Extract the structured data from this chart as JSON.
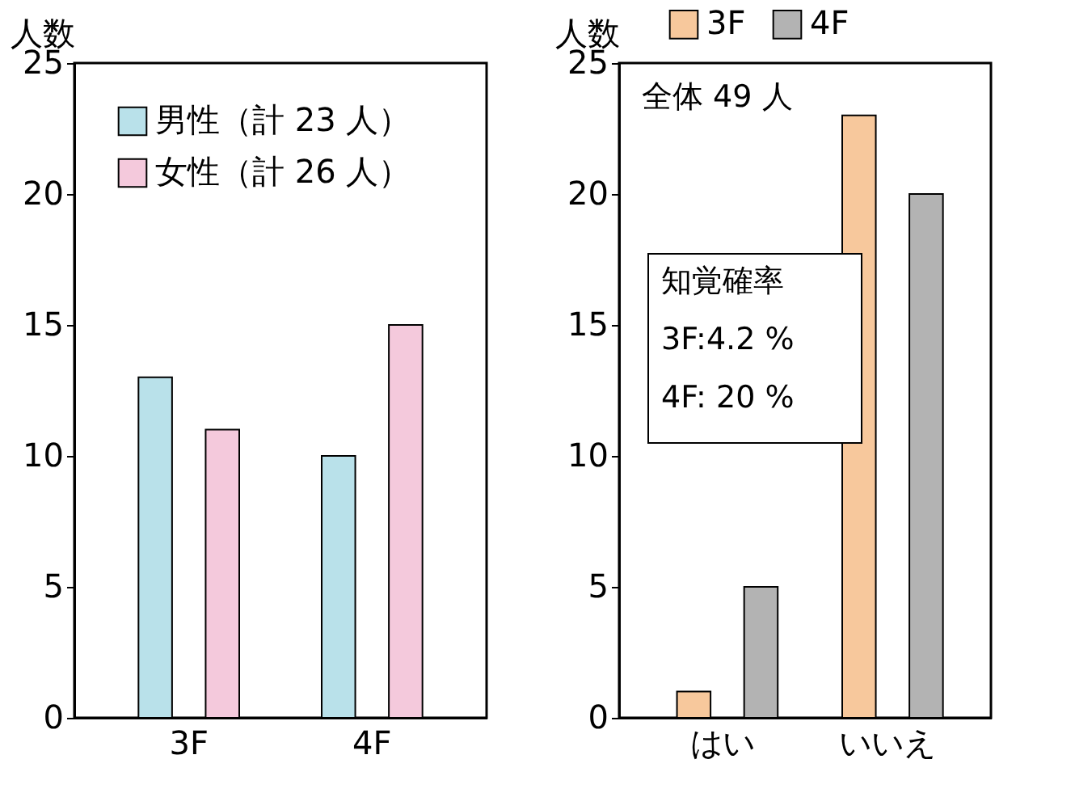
{
  "chart_data": [
    {
      "type": "bar",
      "ylabel": "人数",
      "categories": [
        "3F",
        "4F"
      ],
      "ylim": [
        0,
        25
      ],
      "yticks": [
        0,
        5,
        10,
        15,
        20,
        25
      ],
      "legend": "top left",
      "series": [
        {
          "name": "男性（計 23 人）",
          "color": "#b9e1ea",
          "values": [
            13,
            10
          ]
        },
        {
          "name": "女性（計 26 人）",
          "color": "#f4c9dc",
          "values": [
            11,
            15
          ]
        }
      ]
    },
    {
      "type": "bar",
      "ylabel": "人数",
      "categories": [
        "はい",
        "いいえ"
      ],
      "ylim": [
        0,
        25
      ],
      "yticks": [
        0,
        5,
        10,
        15,
        20,
        25
      ],
      "legend": "top",
      "annotations": [
        "全体 49 人",
        "知覚確率\n3F:4.2 %\n4F: 20 %"
      ],
      "series": [
        {
          "name": "3F",
          "color": "#f7c89c",
          "values": [
            1,
            23
          ]
        },
        {
          "name": "4F",
          "color": "#b3b3b3",
          "values": [
            5,
            20
          ]
        }
      ]
    }
  ]
}
